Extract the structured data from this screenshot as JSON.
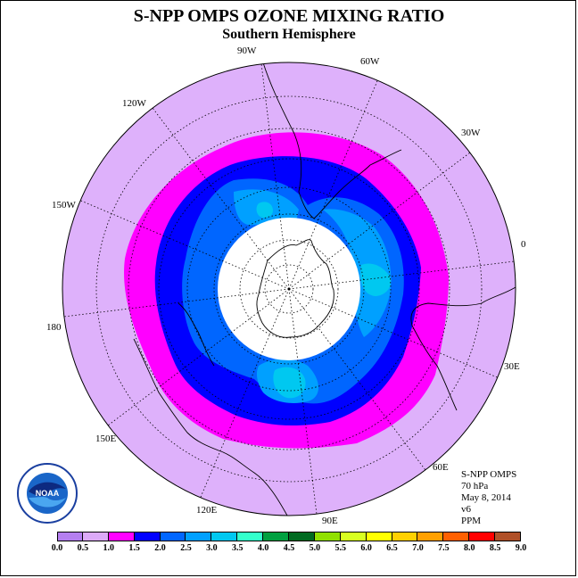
{
  "title": "S-NPP OMPS OZONE MIXING RATIO",
  "subtitle": "Southern Hemisphere",
  "longitude_labels": [
    "90W",
    "60W",
    "30W",
    "0",
    "30E",
    "60E",
    "90E",
    "120E",
    "150E",
    "180",
    "150W",
    "120W"
  ],
  "info": {
    "instrument": "S-NPP OMPS",
    "level": "70 hPa",
    "date": "May 8, 2014",
    "version": "v6",
    "units": "PPM"
  },
  "logo_text": "NOAA",
  "colorbar": {
    "ticks": [
      "0.0",
      "0.5",
      "1.0",
      "1.5",
      "2.0",
      "2.5",
      "3.0",
      "3.5",
      "4.0",
      "4.5",
      "5.0",
      "5.5",
      "6.0",
      "6.5",
      "7.0",
      "7.5",
      "8.0",
      "8.5",
      "9.0"
    ],
    "colors": [
      "#b57ff0",
      "#dcaaf8",
      "#ff00ff",
      "#0000ff",
      "#0066ff",
      "#00a0ff",
      "#00c8f0",
      "#33ffcc",
      "#00a040",
      "#006a20",
      "#90e000",
      "#d8ff20",
      "#ffff00",
      "#ffd000",
      "#ffa000",
      "#ff6000",
      "#ff0000",
      "#b05028"
    ]
  },
  "map": {
    "projection": "south-polar-stereographic",
    "background_color": "#deb1fb",
    "no_data_color": "#ffffff",
    "levels_ppm": [
      1.0,
      1.5,
      2.0,
      2.5,
      3.0
    ]
  }
}
